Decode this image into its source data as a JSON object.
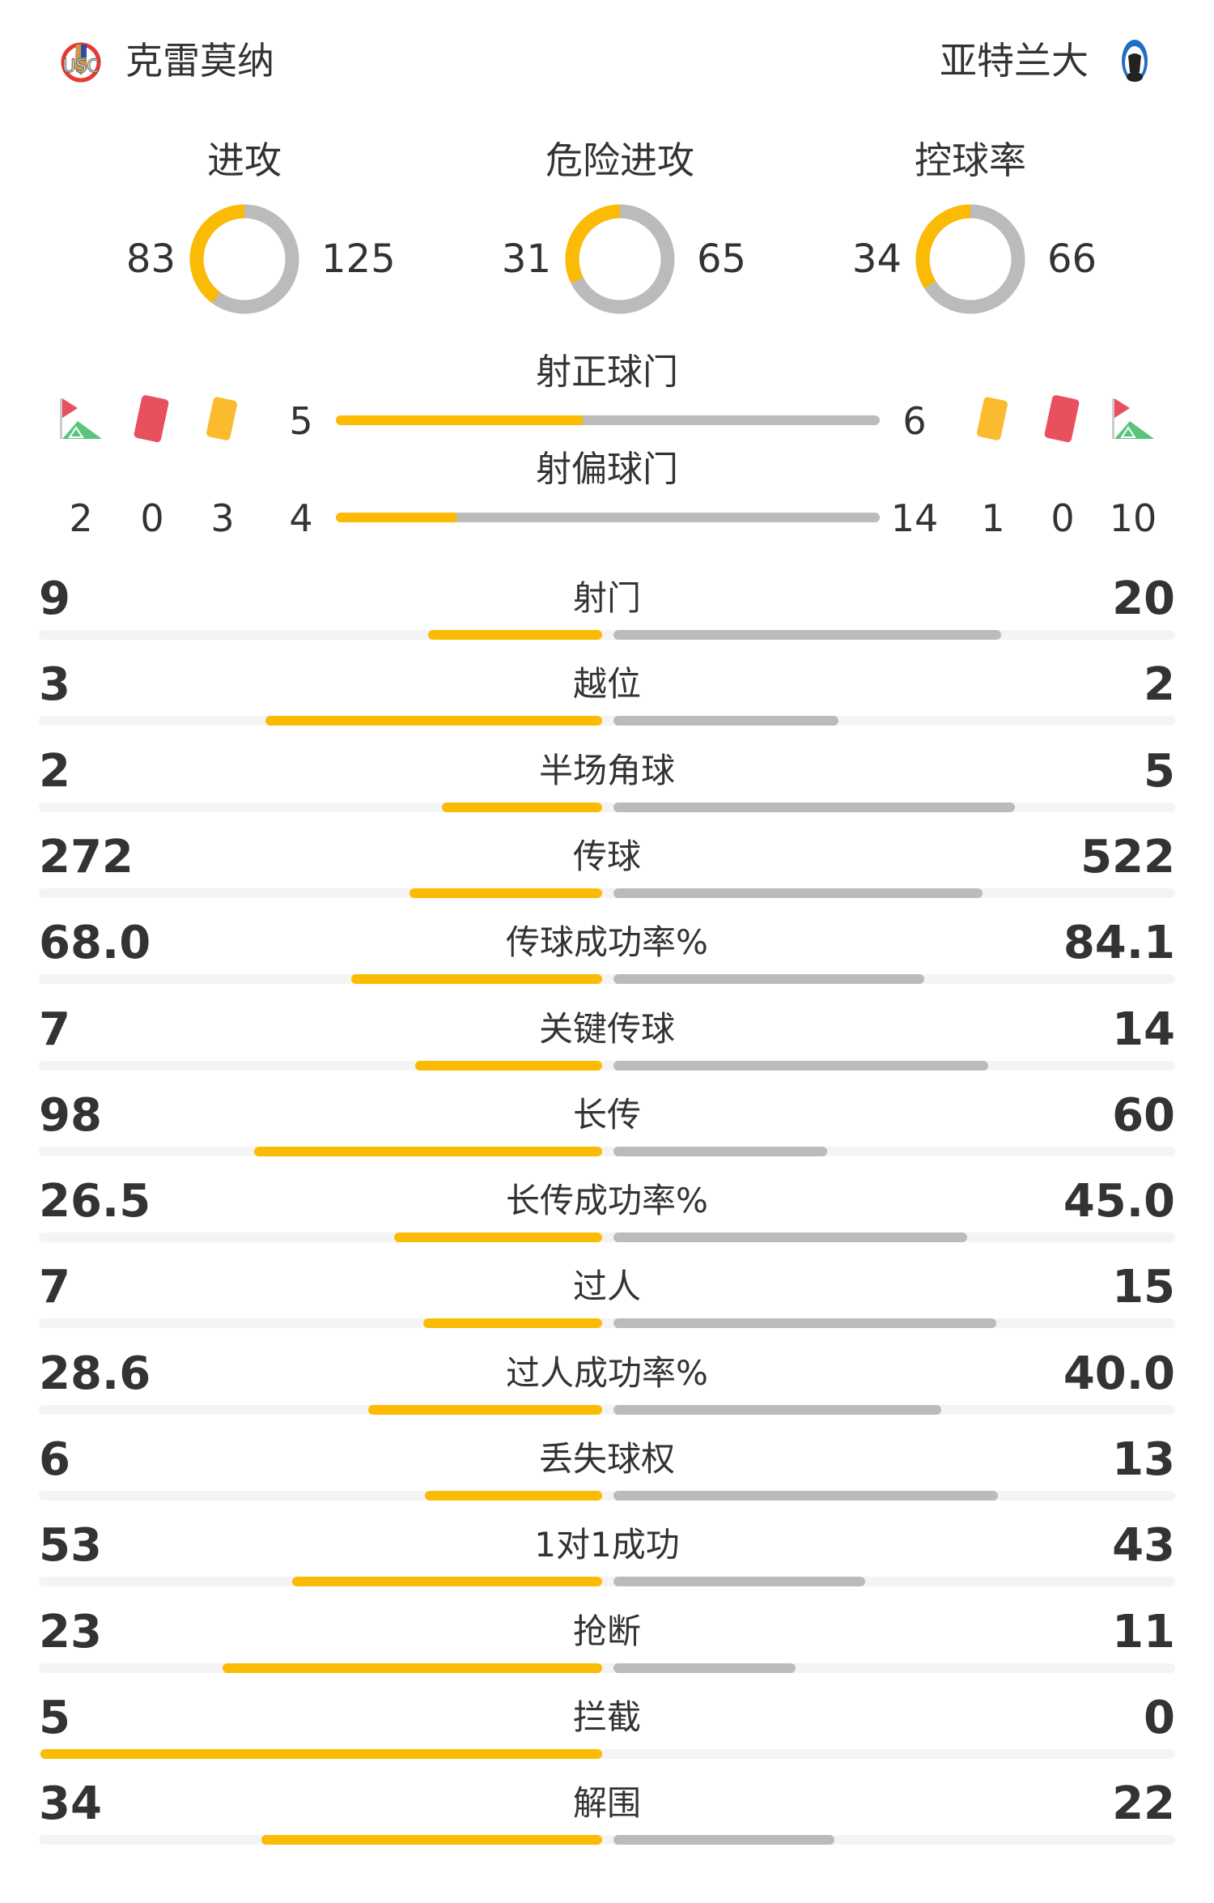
{
  "colors": {
    "home": "#FBBB05",
    "away": "#BBBBBB",
    "track": "#F4F4F4",
    "text": "#333333",
    "red_card": "#E8505E",
    "yellow_card": "#FBBB2E",
    "corner_flag": "#E8505E",
    "corner_field": "#5CC47A"
  },
  "header": {
    "home_team": "克雷莫纳",
    "away_team": "亚特兰大",
    "home_logo": "USC",
    "away_logo": "ATALANTA 1907"
  },
  "donuts": [
    {
      "title": "进攻",
      "home": 83,
      "away": 125
    },
    {
      "title": "危险进攻",
      "home": 31,
      "away": 65
    },
    {
      "title": "控球率",
      "home": 34,
      "away": 66
    }
  ],
  "shots_on_target": {
    "label": "射正球门",
    "home": 5,
    "away": 6
  },
  "shots_off_target": {
    "label": "射偏球门",
    "home": 4,
    "away": 14
  },
  "home_events": {
    "corners": 2,
    "red_cards": 0,
    "yellow_cards": 3
  },
  "away_events": {
    "yellow_cards": 1,
    "red_cards": 0,
    "corners": 10
  },
  "icons": {
    "corner": "corner-flag-icon",
    "red": "red-card-icon",
    "yellow": "yellow-card-icon"
  },
  "stats": [
    {
      "label": "射门",
      "home": "9",
      "away": "20"
    },
    {
      "label": "越位",
      "home": "3",
      "away": "2"
    },
    {
      "label": "半场角球",
      "home": "2",
      "away": "5"
    },
    {
      "label": "传球",
      "home": "272",
      "away": "522"
    },
    {
      "label": "传球成功率%",
      "home": "68.0",
      "away": "84.1"
    },
    {
      "label": "关键传球",
      "home": "7",
      "away": "14"
    },
    {
      "label": "长传",
      "home": "98",
      "away": "60"
    },
    {
      "label": "长传成功率%",
      "home": "26.5",
      "away": "45.0"
    },
    {
      "label": "过人",
      "home": "7",
      "away": "15"
    },
    {
      "label": "过人成功率%",
      "home": "28.6",
      "away": "40.0"
    },
    {
      "label": "丢失球权",
      "home": "6",
      "away": "13"
    },
    {
      "label": "1对1成功",
      "home": "53",
      "away": "43"
    },
    {
      "label": "抢断",
      "home": "23",
      "away": "11"
    },
    {
      "label": "拦截",
      "home": "5",
      "away": "0"
    },
    {
      "label": "解围",
      "home": "34",
      "away": "22"
    }
  ]
}
